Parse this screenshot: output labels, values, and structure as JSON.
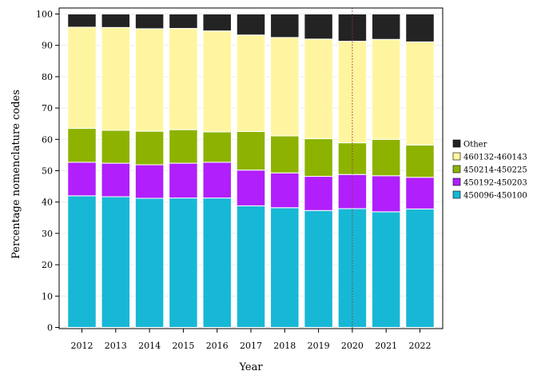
{
  "chart_data": {
    "type": "bar",
    "stacked": true,
    "xlabel": "Year",
    "ylabel": "Percentage nomenclature codes",
    "ylim": [
      0,
      100
    ],
    "yticks": [
      0,
      10,
      20,
      30,
      40,
      50,
      60,
      70,
      80,
      90,
      100
    ],
    "categories": [
      "2012",
      "2013",
      "2014",
      "2015",
      "2016",
      "2017",
      "2018",
      "2019",
      "2020",
      "2021",
      "2022"
    ],
    "reference_line": {
      "x": "2020",
      "style": "dotted",
      "color": "#8b3a3a"
    },
    "legend_position": "right",
    "grid": true,
    "series": [
      {
        "name": "450096-450100",
        "color": "#17b8d6",
        "values": [
          42.0,
          41.7,
          41.2,
          41.3,
          41.3,
          38.8,
          38.2,
          37.3,
          37.9,
          36.9,
          37.8
        ]
      },
      {
        "name": "450192-450203",
        "color": "#b01ffc",
        "values": [
          10.7,
          10.7,
          10.7,
          11.1,
          11.4,
          11.4,
          11.1,
          10.9,
          10.9,
          11.5,
          10.1
        ]
      },
      {
        "name": "450214-450225",
        "color": "#8db300",
        "values": [
          10.8,
          10.5,
          10.7,
          10.7,
          9.7,
          12.3,
          11.8,
          12.0,
          10.1,
          11.6,
          10.3
        ]
      },
      {
        "name": "460132-460143",
        "color": "#fff5a0",
        "values": [
          32.3,
          32.8,
          32.7,
          32.3,
          32.2,
          30.8,
          31.4,
          31.8,
          32.4,
          31.9,
          32.9
        ]
      },
      {
        "name": "Other",
        "color": "#232323",
        "values": [
          4.2,
          4.3,
          4.7,
          4.6,
          5.4,
          6.7,
          7.5,
          8.0,
          8.7,
          8.1,
          8.9
        ]
      }
    ]
  }
}
